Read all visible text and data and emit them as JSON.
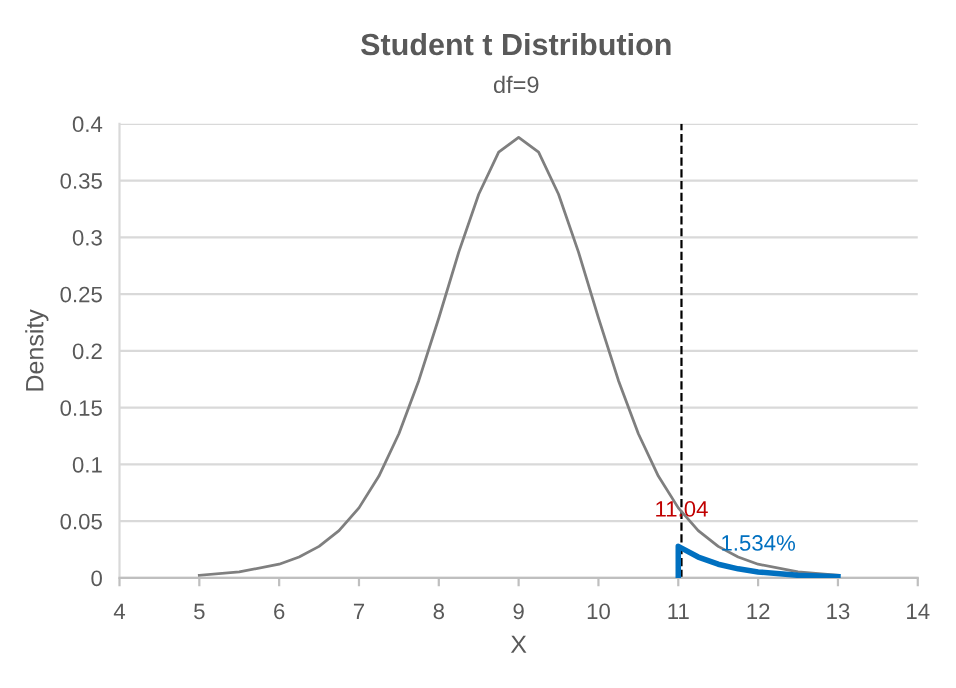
{
  "chart_data": {
    "type": "line",
    "title": "Student t Distribution",
    "subtitle": "df=9",
    "xlabel": "X",
    "ylabel": "Density",
    "series": [
      {
        "color": "#7f7f7f",
        "x": [
          5,
          5.5,
          6,
          6.25,
          6.5,
          6.75,
          7,
          7.25,
          7.5,
          7.75,
          8,
          8.25,
          8.5,
          8.75,
          9,
          9.25,
          9.5,
          9.75,
          10,
          10.25,
          10.5,
          10.75,
          11,
          11.25,
          11.5,
          11.75,
          12,
          12.5,
          13
        ],
        "values": [
          0.0023,
          0.0053,
          0.0121,
          0.0184,
          0.0278,
          0.0416,
          0.0617,
          0.0897,
          0.127,
          0.174,
          0.229,
          0.287,
          0.338,
          0.375,
          0.388,
          0.375,
          0.338,
          0.287,
          0.229,
          0.174,
          0.127,
          0.0897,
          0.0617,
          0.0416,
          0.0278,
          0.0184,
          0.0121,
          0.0053,
          0.0023
        ]
      },
      {
        "color": "#0070c0",
        "x": [
          11,
          11,
          11.25,
          11.5,
          11.75,
          12,
          12.5,
          13
        ],
        "values": [
          0,
          0.0278,
          0.0184,
          0.0121,
          0.008,
          0.0053,
          0.0023,
          0.0011
        ]
      }
    ],
    "xlim": [
      4,
      14
    ],
    "xticks": [
      4,
      5,
      6,
      7,
      8,
      9,
      10,
      11,
      12,
      13,
      14
    ],
    "ylim": [
      0,
      0.4
    ],
    "yticks": [
      0,
      0.05,
      0.1,
      0.15,
      0.2,
      0.25,
      0.3,
      0.35,
      0.4
    ],
    "grid": "y",
    "marker": "none",
    "line_style": "solid",
    "ref_lines": [
      {
        "axis": "x",
        "value": 11.04,
        "color": "#000000",
        "line_style": "dashed"
      }
    ],
    "annotations": [
      {
        "text": "11.04",
        "x": 11.04,
        "y": 0.05
      },
      {
        "text": "1.534%",
        "x": 12,
        "y": 0.02
      }
    ]
  }
}
